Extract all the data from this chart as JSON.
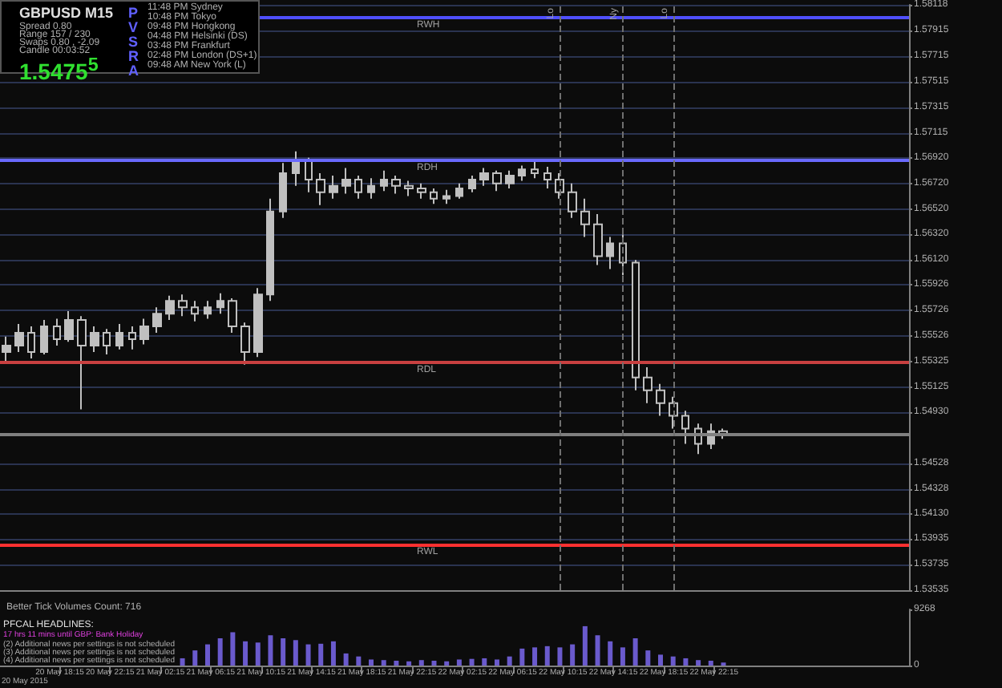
{
  "chart_data": [
    {
      "type": "candlestick",
      "title": "GBPUSD  M15",
      "annotations": [
        "Spread  0.80",
        "Range  157 / 230",
        "Swaps  0.80 , -2.09",
        "Candle  00:03:52",
        "1.5475$^{5}$",
        "PVSRA",
        "11:48 PM  Sydney",
        "10:48 PM  Tokyo",
        "09:48 PM  Hongkong",
        "04:48 PM  Helsinki (DS)",
        "03:48 PM  Frankfurt",
        "02:48 PM  London (DS+1)",
        "09:48 AM  New York (L)"
      ],
      "x": [
        "--05-20T14:00",
        "--05-20T15:00",
        "--05-20T16:00",
        "--05-20T17:00",
        "--05-20T18:00",
        "--05-20T19:00",
        "--05-20T20:00",
        "--05-20T21:00",
        "--05-20T22:00",
        "--05-20T23:00",
        "--05-21T00:00",
        "--05-21T01:00",
        "--05-21T02:00",
        "--05-21T03:00",
        "--05-21T04:00",
        "--05-21T05:00",
        "--05-21T06:00",
        "--05-21T07:00",
        "--05-21T08:00",
        "--05-21T09:00",
        "--05-21T10:00",
        "--05-21T11:00",
        "--05-21T12:00",
        "--05-21T13:00",
        "--05-21T14:00",
        "--05-21T15:00",
        "--05-21T16:00",
        "--05-21T17:00",
        "--05-21T18:00",
        "--05-21T19:00",
        "--05-21T20:00",
        "--05-21T21:00",
        "--05-21T22:00",
        "--05-21T23:00",
        "--05-22T00:00",
        "--05-22T01:00",
        "--05-22T02:00",
        "--05-22T03:00",
        "--05-22T04:00",
        "--05-22T05:00",
        "--05-22T06:00",
        "--05-22T07:00",
        "--05-22T08:00",
        "--05-22T09:00",
        "--05-22T10:00",
        "--05-22T11:00",
        "--05-22T12:00",
        "--05-22T13:00",
        "--05-22T14:00",
        "--05-22T15:00",
        "--05-22T16:00",
        "--05-22T17:00",
        "--05-22T18:00",
        "--05-22T19:00",
        "--05-22T20:00",
        "--05-22T21:00",
        "--05-22T22:00",
        "--05-22T23:00"
      ],
      "ohlc": [
        [
          1.554,
          1.5552,
          1.5532,
          1.5545
        ],
        [
          1.5545,
          1.5562,
          1.554,
          1.5555
        ],
        [
          1.5555,
          1.556,
          1.5535,
          1.554
        ],
        [
          1.554,
          1.5565,
          1.5538,
          1.556
        ],
        [
          1.556,
          1.5566,
          1.5545,
          1.555
        ],
        [
          1.555,
          1.5572,
          1.5548,
          1.5565
        ],
        [
          1.5565,
          1.5568,
          1.5495,
          1.5545
        ],
        [
          1.5545,
          1.556,
          1.554,
          1.5555
        ],
        [
          1.5555,
          1.5558,
          1.5538,
          1.5545
        ],
        [
          1.5545,
          1.5562,
          1.5542,
          1.5555
        ],
        [
          1.5555,
          1.556,
          1.5542,
          1.555
        ],
        [
          1.555,
          1.5566,
          1.5546,
          1.556
        ],
        [
          1.556,
          1.5575,
          1.5555,
          1.557
        ],
        [
          1.557,
          1.5584,
          1.5565,
          1.558
        ],
        [
          1.558,
          1.5585,
          1.5568,
          1.5575
        ],
        [
          1.5575,
          1.558,
          1.5564,
          1.557
        ],
        [
          1.557,
          1.558,
          1.5566,
          1.5575
        ],
        [
          1.5575,
          1.5586,
          1.557,
          1.558
        ],
        [
          1.558,
          1.5582,
          1.5555,
          1.556
        ],
        [
          1.556,
          1.5563,
          1.553,
          1.554
        ],
        [
          1.554,
          1.559,
          1.5536,
          1.5585
        ],
        [
          1.5585,
          1.566,
          1.558,
          1.565
        ],
        [
          1.565,
          1.5688,
          1.5645,
          1.568
        ],
        [
          1.568,
          1.5697,
          1.567,
          1.569
        ],
        [
          1.569,
          1.5692,
          1.5665,
          1.5675
        ],
        [
          1.5675,
          1.568,
          1.5655,
          1.5665
        ],
        [
          1.5665,
          1.5678,
          1.566,
          1.567
        ],
        [
          1.567,
          1.5684,
          1.5664,
          1.5675
        ],
        [
          1.5675,
          1.5678,
          1.566,
          1.5665
        ],
        [
          1.5665,
          1.5676,
          1.566,
          1.567
        ],
        [
          1.567,
          1.5682,
          1.5666,
          1.5675
        ],
        [
          1.5675,
          1.5678,
          1.5664,
          1.567
        ],
        [
          1.567,
          1.5674,
          1.5662,
          1.5668
        ],
        [
          1.5668,
          1.5672,
          1.566,
          1.5665
        ],
        [
          1.5665,
          1.5668,
          1.5656,
          1.566
        ],
        [
          1.566,
          1.5667,
          1.5656,
          1.5662
        ],
        [
          1.5662,
          1.5672,
          1.566,
          1.5668
        ],
        [
          1.5668,
          1.5678,
          1.5665,
          1.5675
        ],
        [
          1.5675,
          1.5684,
          1.567,
          1.568
        ],
        [
          1.568,
          1.5682,
          1.5666,
          1.5672
        ],
        [
          1.5672,
          1.5682,
          1.5668,
          1.5678
        ],
        [
          1.5678,
          1.5686,
          1.5674,
          1.5683
        ],
        [
          1.5683,
          1.569,
          1.5676,
          1.568
        ],
        [
          1.568,
          1.5685,
          1.5668,
          1.5675
        ],
        [
          1.5675,
          1.568,
          1.566,
          1.5665
        ],
        [
          1.5665,
          1.5672,
          1.5645,
          1.565
        ],
        [
          1.565,
          1.566,
          1.563,
          1.564
        ],
        [
          1.564,
          1.5648,
          1.5608,
          1.5615
        ],
        [
          1.5615,
          1.563,
          1.5605,
          1.5625
        ],
        [
          1.5625,
          1.5632,
          1.56,
          1.561
        ],
        [
          1.561,
          1.5612,
          1.551,
          1.552
        ],
        [
          1.552,
          1.5528,
          1.55,
          1.551
        ],
        [
          1.551,
          1.5515,
          1.549,
          1.55
        ],
        [
          1.55,
          1.5505,
          1.548,
          1.549
        ],
        [
          1.549,
          1.5494,
          1.5468,
          1.548
        ],
        [
          1.548,
          1.5484,
          1.546,
          1.5468
        ],
        [
          1.5468,
          1.5484,
          1.5464,
          1.5478
        ],
        [
          1.5478,
          1.548,
          1.5472,
          1.5475
        ]
      ],
      "color": "#c0c0c0",
      "xlim": [
        "--05-20T13:30",
        "--05-23T13:45"
      ],
      "ylim": [
        1.53535,
        1.58118
      ],
      "yticks": [
        1.53535,
        1.53735,
        1.53935,
        {
          "value": 1.5413,
          "label": "1.54130"
        },
        1.54328,
        1.54528,
        {
          "value": 1.5493,
          "label": "1.54930"
        },
        1.55125,
        1.55325,
        1.55526,
        1.55726,
        1.55926,
        {
          "value": 1.5612,
          "label": "1.56120"
        },
        {
          "value": 1.5632,
          "label": "1.56320"
        },
        {
          "value": 1.5652,
          "label": "1.56520"
        },
        {
          "value": 1.5672,
          "label": "1.56720"
        },
        {
          "value": 1.5692,
          "label": "1.56920"
        },
        1.57115,
        1.57315,
        1.57515,
        1.57715,
        1.57915,
        1.58118
      ],
      "tick_labels": "y",
      "grid": "y",
      "ref_lines": [
        {
          "axis": "y",
          "value": 1.5802,
          "label": "RWH",
          "color": "#5050ff"
        },
        {
          "axis": "y",
          "value": 1.569,
          "label": "RDH",
          "color": "#6a6aff"
        },
        {
          "axis": "y",
          "value": 1.5532,
          "label": "RDL",
          "color": "#c84040"
        },
        {
          "axis": "y",
          "value": 1.5389,
          "label": "RWL",
          "color": "#ff3030"
        },
        {
          "axis": "y",
          "value": 1.5475,
          "color": "#808080"
        },
        {
          "axis": "x",
          "value": "--05-22T10:00",
          "label": "Lo",
          "color": "#707070",
          "line_style": "dashed"
        },
        {
          "axis": "x",
          "value": "--05-22T15:00",
          "label": "Ny",
          "color": "#707070",
          "line_style": "dashed"
        },
        {
          "axis": "x",
          "value": "--05-22T19:00",
          "label": "Lo",
          "color": "#707070",
          "line_style": "dashed"
        }
      ]
    },
    {
      "type": "bar",
      "title": "Better Tick Volumes   Count: 716",
      "annotations": [
        "20 May 2015",
        "PFCAL HEADLINES:",
        "17 hrs 11 mins until GBP: Bank Holiday",
        "(2) Additional news per settings is not scheduled",
        "(3) Additional news per settings is not scheduled",
        "(4) Additional news per settings is not scheduled"
      ],
      "x": [
        "--05-21T04:00",
        "--05-21T05:00",
        "--05-21T06:00",
        "--05-21T07:00",
        "--05-21T08:00",
        "--05-21T09:00",
        "--05-21T10:00",
        "--05-21T11:00",
        "--05-21T12:00",
        "--05-21T13:00",
        "--05-21T14:00",
        "--05-21T15:00",
        "--05-21T16:00",
        "--05-21T17:00",
        "--05-21T18:00",
        "--05-21T19:00",
        "--05-21T20:00",
        "--05-21T21:00",
        "--05-21T22:00",
        "--05-21T23:00",
        "--05-22T00:00",
        "--05-22T01:00",
        "--05-22T02:00",
        "--05-22T03:00",
        "--05-22T04:00",
        "--05-22T05:00",
        "--05-22T06:00",
        "--05-22T07:00",
        "--05-22T08:00",
        "--05-22T09:00",
        "--05-22T10:00",
        "--05-22T11:00",
        "--05-22T12:00",
        "--05-22T13:00",
        "--05-22T14:00",
        "--05-22T15:00",
        "--05-22T16:00",
        "--05-22T17:00",
        "--05-22T18:00",
        "--05-22T19:00",
        "--05-22T20:00",
        "--05-22T21:00",
        "--05-22T22:00",
        "--05-22T23:00"
      ],
      "values": [
        1200,
        2500,
        3500,
        4500,
        5500,
        4000,
        3800,
        5000,
        4500,
        4200,
        3500,
        3600,
        4000,
        2000,
        1500,
        1000,
        900,
        800,
        700,
        900,
        800,
        700,
        1000,
        1100,
        1200,
        1000,
        1500,
        2800,
        3000,
        3200,
        3000,
        3500,
        6500,
        5000,
        4000,
        3000,
        4500,
        2500,
        1800,
        1500,
        1200,
        900,
        800,
        500
      ],
      "color": "#6a5acd",
      "xlim": [
        "--05-20T13:30",
        "--05-23T13:45"
      ],
      "xticks": [
        {
          "value": "--05-20T18:15",
          "label": "20 May 18:15"
        },
        {
          "value": "--05-20T22:15",
          "label": "20 May 22:15"
        },
        {
          "value": "--05-21T02:15",
          "label": "21 May 02:15"
        },
        {
          "value": "--05-21T06:15",
          "label": "21 May 06:15"
        },
        {
          "value": "--05-21T10:15",
          "label": "21 May 10:15"
        },
        {
          "value": "--05-21T14:15",
          "label": "21 May 14:15"
        },
        {
          "value": "--05-21T18:15",
          "label": "21 May 18:15"
        },
        {
          "value": "--05-21T22:15",
          "label": "21 May 22:15"
        },
        {
          "value": "--05-22T02:15",
          "label": "22 May 02:15"
        },
        {
          "value": "--05-22T06:15",
          "label": "22 May 06:15"
        },
        {
          "value": "--05-22T10:15",
          "label": "22 May 10:15"
        },
        {
          "value": "--05-22T14:15",
          "label": "22 May 14:15"
        },
        {
          "value": "--05-22T18:15",
          "label": "22 May 18:15"
        },
        {
          "value": "--05-22T22:15",
          "label": "22 May 22:15"
        }
      ],
      "ylim": [
        0,
        9268
      ],
      "yticks": [
        0,
        9268
      ]
    }
  ]
}
